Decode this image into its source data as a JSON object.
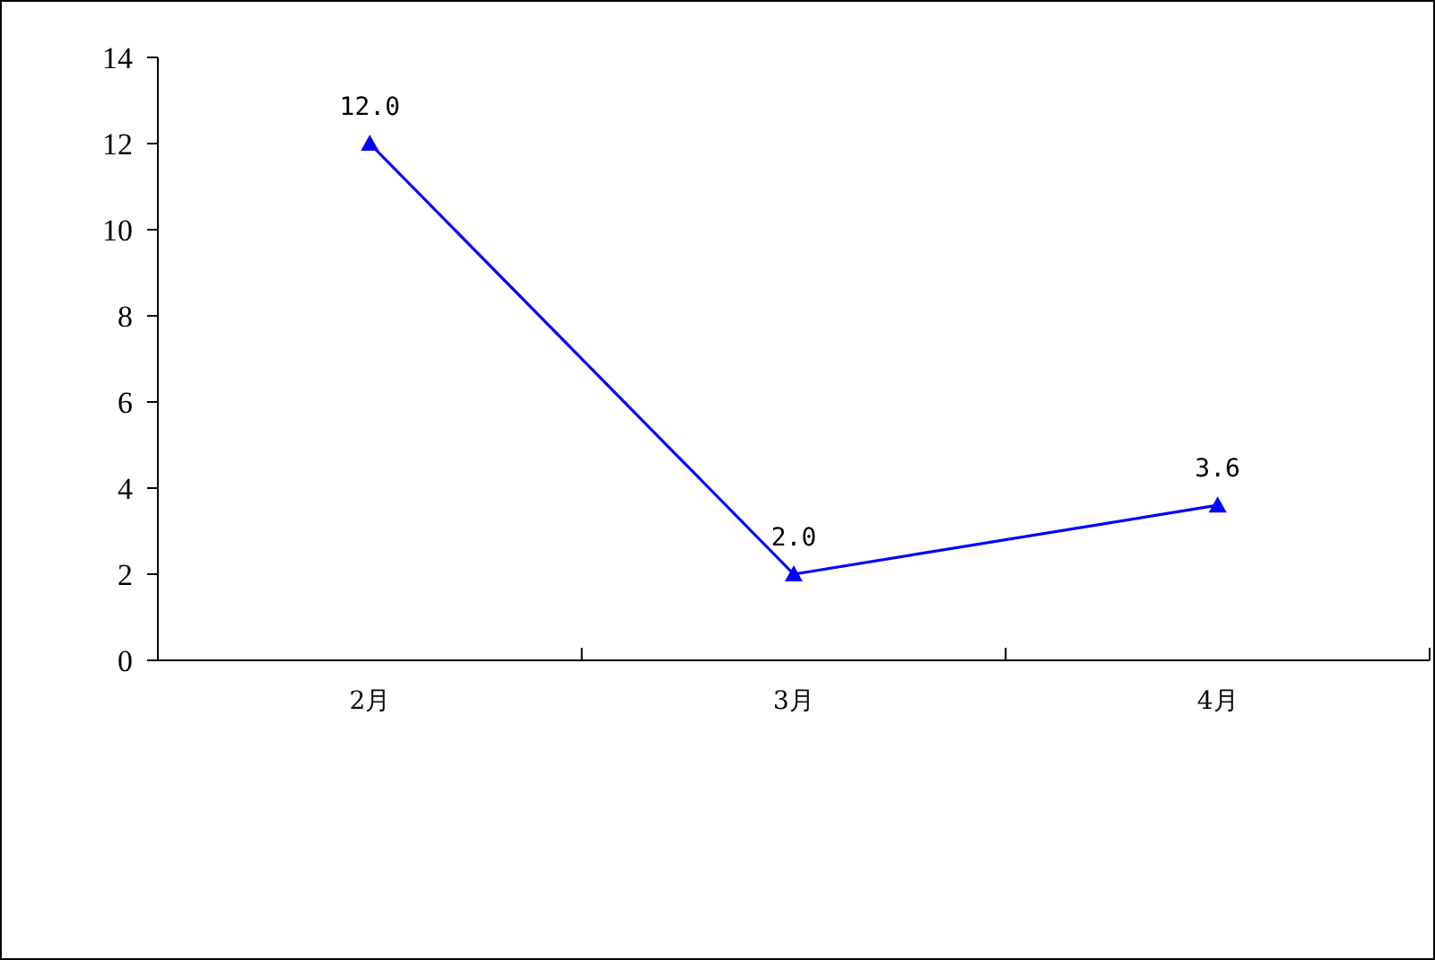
{
  "chart_data": {
    "type": "line",
    "categories": [
      "2月",
      "3月",
      "4月"
    ],
    "series": [
      {
        "color": "#0000ff",
        "values": [
          12.0,
          2.0,
          3.6
        ],
        "value_labels": [
          "12.0",
          "2.0",
          "3.6"
        ]
      }
    ],
    "ylim": [
      0,
      14
    ],
    "yticks": [
      0,
      2,
      4,
      6,
      8,
      10,
      12,
      14
    ],
    "grid": false,
    "marker": "triangle",
    "line_style": "solid"
  }
}
